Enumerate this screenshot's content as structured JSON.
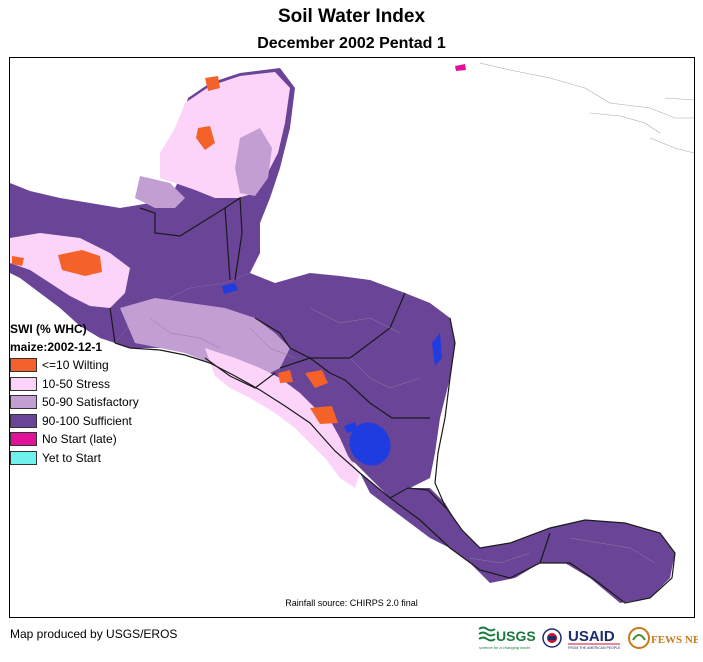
{
  "map": {
    "title": "Soil Water Index",
    "subtitle": "December 2002 Pentad 1",
    "source_note": "Rainfall source: CHIRPS 2.0 final",
    "credit": "Map produced by USGS/EROS"
  },
  "legend": {
    "title": "SWI (% WHC)",
    "crop_date": "maize:2002-12-1",
    "items": [
      {
        "label": "<=10 Wilting",
        "color": "#f4622a"
      },
      {
        "label": "10-50 Stress",
        "color": "#fcd4fa"
      },
      {
        "label": "50-90 Satisfactory",
        "color": "#c39ed3"
      },
      {
        "label": "90-100 Sufficient",
        "color": "#6a4496"
      },
      {
        "label": "No Start (late)",
        "color": "#e0129a"
      },
      {
        "label": "Yet to Start",
        "color": "#6ff2ee"
      }
    ]
  },
  "colors": {
    "water": "#1f3ce0",
    "border": "#1a1a1a"
  },
  "logos": {
    "usgs": "USGS",
    "usgs_tagline": "science for a changing world",
    "usaid": "USAID",
    "usaid_tagline": "FROM THE AMERICAN PEOPLE",
    "fews": "FEWS NET"
  }
}
